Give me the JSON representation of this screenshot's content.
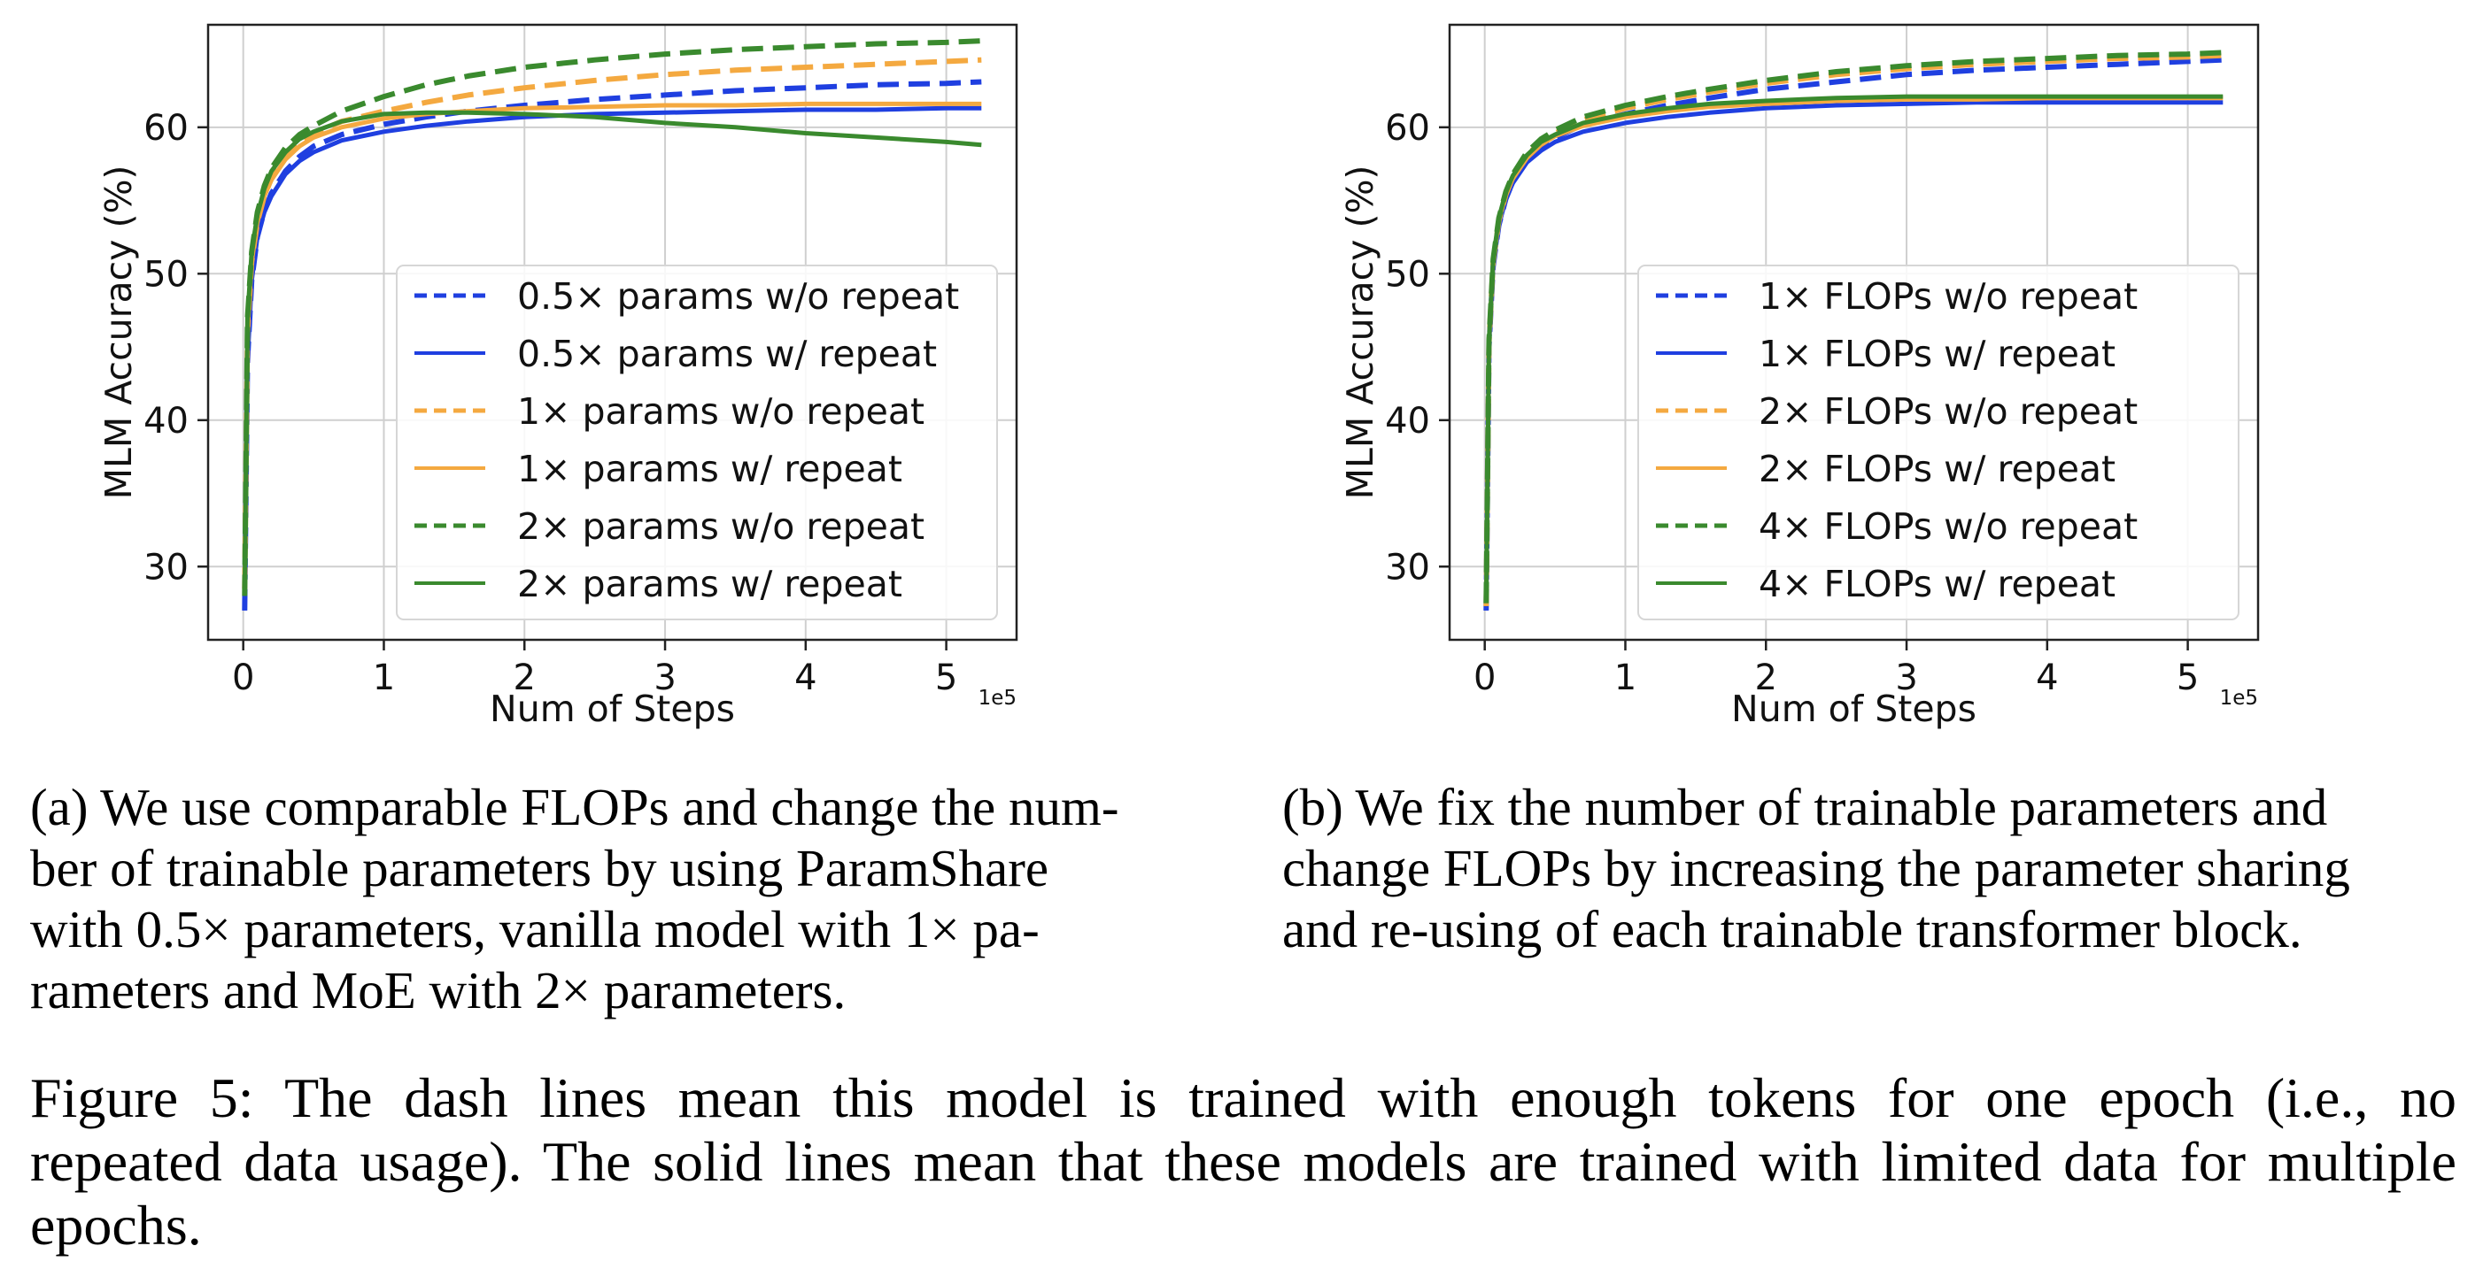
{
  "chart_data": [
    {
      "type": "line",
      "panel": "a",
      "xlabel": "Num of Steps",
      "ylabel": "MLM Accuracy (%)",
      "x_offset_label": "1e5",
      "xlim": [
        -0.25,
        5.5
      ],
      "ylim": [
        25,
        67
      ],
      "xticks": [
        0,
        1,
        2,
        3,
        4,
        5
      ],
      "yticks": [
        30,
        40,
        50,
        60
      ],
      "grid": true,
      "legend_position": "lower-right",
      "series": [
        {
          "name": "0.5× params w/o repeat",
          "color": "#1f3fe0",
          "dash": true,
          "x": [
            0.01,
            0.03,
            0.06,
            0.1,
            0.15,
            0.2,
            0.3,
            0.4,
            0.5,
            0.7,
            1.0,
            1.3,
            1.6,
            2.0,
            2.5,
            3.0,
            3.5,
            4.0,
            4.5,
            5.0,
            5.25
          ],
          "y": [
            27.0,
            44.0,
            49.5,
            52.5,
            54.3,
            55.5,
            57.0,
            58.0,
            58.7,
            59.5,
            60.2,
            60.7,
            61.1,
            61.5,
            61.9,
            62.2,
            62.5,
            62.7,
            62.9,
            63.0,
            63.1
          ]
        },
        {
          "name": "0.5× params w/ repeat",
          "color": "#1f3fe0",
          "dash": false,
          "x": [
            0.01,
            0.03,
            0.06,
            0.1,
            0.15,
            0.2,
            0.3,
            0.4,
            0.5,
            0.7,
            1.0,
            1.3,
            1.6,
            2.0,
            2.5,
            3.0,
            3.5,
            4.0,
            4.5,
            5.0,
            5.25
          ],
          "y": [
            27.0,
            44.0,
            49.5,
            52.5,
            54.2,
            55.3,
            56.8,
            57.7,
            58.3,
            59.1,
            59.7,
            60.1,
            60.4,
            60.7,
            60.9,
            61.0,
            61.1,
            61.2,
            61.2,
            61.3,
            61.3
          ]
        },
        {
          "name": "1× params w/o repeat",
          "color": "#f4a940",
          "dash": true,
          "x": [
            0.01,
            0.03,
            0.06,
            0.1,
            0.15,
            0.2,
            0.3,
            0.4,
            0.5,
            0.7,
            1.0,
            1.3,
            1.6,
            2.0,
            2.5,
            3.0,
            3.5,
            4.0,
            4.5,
            5.0,
            5.25
          ],
          "y": [
            28.5,
            46.0,
            50.8,
            53.5,
            55.3,
            56.5,
            58.0,
            59.0,
            59.6,
            60.4,
            61.1,
            61.7,
            62.2,
            62.7,
            63.2,
            63.6,
            63.9,
            64.1,
            64.3,
            64.5,
            64.6
          ]
        },
        {
          "name": "1× params w/ repeat",
          "color": "#f4a940",
          "dash": false,
          "x": [
            0.01,
            0.03,
            0.06,
            0.1,
            0.15,
            0.2,
            0.3,
            0.4,
            0.5,
            0.7,
            1.0,
            1.3,
            1.6,
            2.0,
            2.5,
            3.0,
            3.5,
            4.0,
            4.5,
            5.0,
            5.25
          ],
          "y": [
            28.5,
            46.0,
            50.8,
            53.5,
            55.3,
            56.4,
            57.8,
            58.7,
            59.3,
            60.0,
            60.6,
            60.9,
            61.1,
            61.3,
            61.4,
            61.5,
            61.5,
            61.6,
            61.6,
            61.6,
            61.6
          ]
        },
        {
          "name": "2× params w/o repeat",
          "color": "#3a8a2e",
          "dash": true,
          "x": [
            0.01,
            0.03,
            0.06,
            0.1,
            0.15,
            0.2,
            0.3,
            0.4,
            0.5,
            0.7,
            1.0,
            1.3,
            1.6,
            2.0,
            2.5,
            3.0,
            3.5,
            4.0,
            4.5,
            5.0,
            5.25
          ],
          "y": [
            28.0,
            47.0,
            51.5,
            54.2,
            56.0,
            57.2,
            58.6,
            59.5,
            60.1,
            61.1,
            62.1,
            62.9,
            63.5,
            64.1,
            64.6,
            65.0,
            65.3,
            65.5,
            65.7,
            65.8,
            65.9
          ]
        },
        {
          "name": "2× params w/ repeat",
          "color": "#3a8a2e",
          "dash": false,
          "x": [
            0.01,
            0.03,
            0.06,
            0.1,
            0.15,
            0.2,
            0.3,
            0.4,
            0.5,
            0.7,
            1.0,
            1.3,
            1.6,
            2.0,
            2.5,
            3.0,
            3.5,
            4.0,
            4.5,
            5.0,
            5.25
          ],
          "y": [
            28.0,
            47.0,
            51.5,
            54.0,
            55.8,
            57.0,
            58.3,
            59.2,
            59.7,
            60.4,
            60.9,
            61.0,
            61.0,
            60.9,
            60.7,
            60.3,
            60.0,
            59.6,
            59.3,
            59.0,
            58.8
          ]
        }
      ]
    },
    {
      "type": "line",
      "panel": "b",
      "xlabel": "Num of Steps",
      "ylabel": "MLM Accuracy (%)",
      "x_offset_label": "1e5",
      "xlim": [
        -0.25,
        5.5
      ],
      "ylim": [
        25,
        67
      ],
      "xticks": [
        0,
        1,
        2,
        3,
        4,
        5
      ],
      "yticks": [
        30,
        40,
        50,
        60
      ],
      "grid": true,
      "legend_position": "lower-right",
      "series": [
        {
          "name": "1× FLOPs w/o repeat",
          "color": "#1f3fe0",
          "dash": true,
          "x": [
            0.01,
            0.03,
            0.06,
            0.1,
            0.15,
            0.2,
            0.3,
            0.4,
            0.5,
            0.7,
            1.0,
            1.3,
            1.6,
            2.0,
            2.5,
            3.0,
            3.5,
            4.0,
            4.5,
            5.0,
            5.25
          ],
          "y": [
            27.0,
            45.0,
            50.5,
            53.3,
            55.1,
            56.3,
            57.8,
            58.7,
            59.3,
            60.2,
            60.9,
            61.5,
            62.0,
            62.6,
            63.1,
            63.6,
            63.9,
            64.1,
            64.3,
            64.5,
            64.6
          ]
        },
        {
          "name": "1× FLOPs w/ repeat",
          "color": "#1f3fe0",
          "dash": false,
          "x": [
            0.01,
            0.03,
            0.06,
            0.1,
            0.15,
            0.2,
            0.3,
            0.4,
            0.5,
            0.7,
            1.0,
            1.3,
            1.6,
            2.0,
            2.5,
            3.0,
            3.5,
            4.0,
            4.5,
            5.0,
            5.25
          ],
          "y": [
            27.0,
            45.0,
            50.5,
            53.3,
            55.1,
            56.2,
            57.6,
            58.4,
            59.0,
            59.7,
            60.3,
            60.7,
            61.0,
            61.3,
            61.5,
            61.6,
            61.7,
            61.7,
            61.7,
            61.7,
            61.7
          ]
        },
        {
          "name": "2× FLOPs w/o repeat",
          "color": "#f4a940",
          "dash": true,
          "x": [
            0.01,
            0.03,
            0.06,
            0.1,
            0.15,
            0.2,
            0.3,
            0.4,
            0.5,
            0.7,
            1.0,
            1.3,
            1.6,
            2.0,
            2.5,
            3.0,
            3.5,
            4.0,
            4.5,
            5.0,
            5.25
          ],
          "y": [
            27.3,
            45.3,
            50.8,
            53.6,
            55.4,
            56.6,
            58.1,
            59.0,
            59.6,
            60.5,
            61.3,
            61.9,
            62.4,
            63.0,
            63.6,
            64.0,
            64.3,
            64.5,
            64.7,
            64.8,
            64.9
          ]
        },
        {
          "name": "2× FLOPs w/ repeat",
          "color": "#f4a940",
          "dash": false,
          "x": [
            0.01,
            0.03,
            0.06,
            0.1,
            0.15,
            0.2,
            0.3,
            0.4,
            0.5,
            0.7,
            1.0,
            1.3,
            1.6,
            2.0,
            2.5,
            3.0,
            3.5,
            4.0,
            4.5,
            5.0,
            5.25
          ],
          "y": [
            27.3,
            45.3,
            50.8,
            53.6,
            55.4,
            56.5,
            57.9,
            58.8,
            59.4,
            60.1,
            60.7,
            61.1,
            61.4,
            61.6,
            61.8,
            61.9,
            61.9,
            62.0,
            62.0,
            62.0,
            62.0
          ]
        },
        {
          "name": "4× FLOPs w/o repeat",
          "color": "#3a8a2e",
          "dash": true,
          "x": [
            0.01,
            0.03,
            0.06,
            0.1,
            0.15,
            0.2,
            0.3,
            0.4,
            0.5,
            0.7,
            1.0,
            1.3,
            1.6,
            2.0,
            2.5,
            3.0,
            3.5,
            4.0,
            4.5,
            5.0,
            5.25
          ],
          "y": [
            27.5,
            45.5,
            51.0,
            53.8,
            55.6,
            56.8,
            58.3,
            59.2,
            59.8,
            60.7,
            61.5,
            62.1,
            62.6,
            63.2,
            63.8,
            64.2,
            64.5,
            64.7,
            64.9,
            65.0,
            65.1
          ]
        },
        {
          "name": "4× FLOPs w/ repeat",
          "color": "#3a8a2e",
          "dash": false,
          "x": [
            0.01,
            0.03,
            0.06,
            0.1,
            0.15,
            0.2,
            0.3,
            0.4,
            0.5,
            0.7,
            1.0,
            1.3,
            1.6,
            2.0,
            2.5,
            3.0,
            3.5,
            4.0,
            4.5,
            5.0,
            5.25
          ],
          "y": [
            27.5,
            45.5,
            51.0,
            53.8,
            55.6,
            56.7,
            58.1,
            59.0,
            59.5,
            60.3,
            60.9,
            61.3,
            61.6,
            61.8,
            62.0,
            62.1,
            62.1,
            62.1,
            62.1,
            62.1,
            62.1
          ]
        }
      ]
    }
  ],
  "captions": {
    "a": [
      "(a) We use comparable FLOPs and change the num-",
      "ber of trainable parameters by using ParamShare",
      "with 0.5× parameters, vanilla model with 1× pa-",
      "rameters and MoE with 2× parameters."
    ],
    "b": [
      "(b) We fix the number of trainable parameters and",
      "change FLOPs by increasing the parameter sharing",
      "and re-using of each trainable transformer block."
    ],
    "figure": [
      "Figure 5: The dash lines mean this model is trained with enough tokens for one epoch (i.e., no",
      "repeated data usage). The solid lines mean that these models are trained with limited data for multiple",
      "epochs."
    ]
  }
}
